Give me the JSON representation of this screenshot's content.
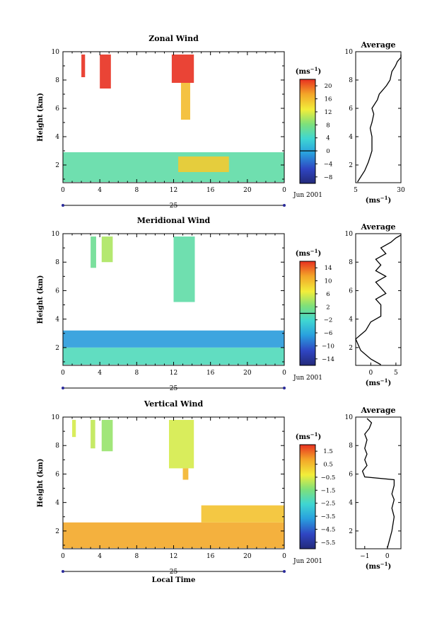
{
  "chart_data": [
    {
      "type": "heatmap",
      "title": "Zonal Wind",
      "ylabel": "Height (km)",
      "ylim": [
        0.75,
        10
      ],
      "yticks": [
        2,
        4,
        6,
        8,
        10
      ],
      "xlim": [
        0,
        24
      ],
      "xticks": [
        "0",
        "4",
        "8",
        "12",
        "16",
        "20",
        "0"
      ],
      "date_label": "25",
      "month_label": "Jun 2001",
      "colorbar": {
        "unit": "(ms",
        "exp": "−1",
        "unit_close": ")",
        "ticks": [
          "20",
          "16",
          "12",
          "8",
          "4",
          "0",
          "−4",
          "−8"
        ],
        "min": -10,
        "max": 22,
        "contour": 0
      },
      "colors": {
        "low": "#2c3aa0",
        "high": "#e83020"
      },
      "regions": [
        {
          "t0": 0,
          "t1": 24,
          "h0": 0.8,
          "h1": 2.9,
          "value": 6
        },
        {
          "t0": 12.5,
          "t1": 18,
          "h0": 1.5,
          "h1": 2.6,
          "value": 15
        },
        {
          "t0": 2,
          "t1": 2.4,
          "h0": 8.2,
          "h1": 9.8,
          "value": 22
        },
        {
          "t0": 4,
          "t1": 5.2,
          "h0": 7.4,
          "h1": 9.8,
          "value": 22
        },
        {
          "t0": 11.8,
          "t1": 14.2,
          "h0": 7.8,
          "h1": 9.8,
          "value": 22
        },
        {
          "t0": 12.8,
          "t1": 13.8,
          "h0": 5.2,
          "h1": 7.8,
          "value": 16
        }
      ],
      "profile": {
        "title": "Average",
        "xlim": [
          5,
          30
        ],
        "xticks": [
          "5",
          "30"
        ],
        "xlabel": "(ms",
        "xlabel_exp": "−1",
        "xlabel_close": ")",
        "ylim": [
          0.75,
          10
        ],
        "yticks": [
          2,
          4,
          6,
          8,
          10
        ],
        "x": [
          6,
          7,
          10,
          12,
          13,
          14,
          14,
          14,
          13,
          14,
          15,
          14,
          17,
          18,
          22,
          24,
          25,
          27,
          28,
          30,
          30
        ],
        "y": [
          0.8,
          1,
          1.6,
          2.2,
          2.6,
          3,
          3.6,
          4,
          4.6,
          5,
          5.6,
          6,
          6.6,
          7,
          7.6,
          8,
          8.6,
          9,
          9.3,
          9.6,
          9.8
        ]
      }
    },
    {
      "type": "heatmap",
      "title": "Meridional Wind",
      "ylabel": "Height (km)",
      "ylim": [
        0.75,
        10
      ],
      "yticks": [
        2,
        4,
        6,
        8,
        10
      ],
      "xlim": [
        0,
        24
      ],
      "xticks": [
        "0",
        "4",
        "8",
        "12",
        "16",
        "20",
        "0"
      ],
      "date_label": "25",
      "month_label": "Jun 2001",
      "colorbar": {
        "unit": "(ms",
        "exp": "−1",
        "unit_close": ")",
        "ticks": [
          "14",
          "10",
          "6",
          "2",
          "−2",
          "−6",
          "−10",
          "−14"
        ],
        "min": -16,
        "max": 16,
        "contour": 0
      },
      "colors": {
        "low": "#2c3aa0",
        "high": "#e83020"
      },
      "regions": [
        {
          "t0": 0,
          "t1": 24,
          "h0": 2,
          "h1": 3.2,
          "value": -7
        },
        {
          "t0": 0,
          "t1": 24,
          "h0": 0.8,
          "h1": 2,
          "value": -1
        },
        {
          "t0": 3,
          "t1": 3.6,
          "h0": 7.6,
          "h1": 9.8,
          "value": 1
        },
        {
          "t0": 4.2,
          "t1": 5.4,
          "h0": 8,
          "h1": 9.8,
          "value": 4
        },
        {
          "t0": 12,
          "t1": 14.3,
          "h0": 5.2,
          "h1": 9.8,
          "value": 0
        }
      ],
      "profile": {
        "title": "Average",
        "xlim": [
          -3,
          6
        ],
        "xticks": [
          "0",
          "5"
        ],
        "xlabel": "(ms",
        "xlabel_exp": "−1",
        "xlabel_close": ")",
        "ylim": [
          0.75,
          10
        ],
        "yticks": [
          2,
          4,
          6,
          8,
          10
        ],
        "x": [
          2,
          0,
          -2,
          -3,
          -1,
          0,
          2,
          2,
          1,
          3,
          2,
          1,
          3,
          1,
          2,
          1,
          3,
          2,
          4,
          5,
          6
        ],
        "y": [
          0.8,
          1.2,
          1.8,
          2.6,
          3.2,
          3.8,
          4.2,
          5,
          5.4,
          5.8,
          6.2,
          6.6,
          7,
          7.4,
          7.8,
          8.2,
          8.6,
          9,
          9.4,
          9.7,
          9.9
        ]
      }
    },
    {
      "type": "heatmap",
      "title": "Vertical Wind",
      "ylabel": "Height (km)",
      "ylim": [
        0.75,
        10
      ],
      "yticks": [
        2,
        4,
        6,
        8,
        10
      ],
      "xlim": [
        0,
        24
      ],
      "xticks": [
        "0",
        "4",
        "8",
        "12",
        "16",
        "20",
        "0"
      ],
      "date_label": "25",
      "month_label": "Jun 2001",
      "xlabel": "Local Time",
      "colorbar": {
        "unit": "(ms",
        "exp": "−1",
        "unit_close": ")",
        "ticks": [
          "1.5",
          "0.5",
          "−0.5",
          "−1.5",
          "−2.5",
          "−3.5",
          "−4.5",
          "−5.5"
        ],
        "min": -6,
        "max": 2,
        "contour": null
      },
      "colors": {
        "low": "#2c3aa0",
        "high": "#e83020"
      },
      "regions": [
        {
          "t0": 0,
          "t1": 24,
          "h0": 0.8,
          "h1": 2.6,
          "value": 0.8
        },
        {
          "t0": 15,
          "t1": 24,
          "h0": 2.6,
          "h1": 3.8,
          "value": 0.4
        },
        {
          "t0": 1,
          "t1": 1.4,
          "h0": 8.6,
          "h1": 9.8,
          "value": -0.6
        },
        {
          "t0": 3,
          "t1": 3.5,
          "h0": 7.8,
          "h1": 9.8,
          "value": -0.8
        },
        {
          "t0": 4.2,
          "t1": 5.4,
          "h0": 7.6,
          "h1": 9.8,
          "value": -1.2
        },
        {
          "t0": 11.5,
          "t1": 14.2,
          "h0": 6.4,
          "h1": 9.8,
          "value": -0.6
        },
        {
          "t0": 13,
          "t1": 13.6,
          "h0": 5.6,
          "h1": 6.4,
          "value": 0.6
        }
      ],
      "profile": {
        "title": "Average",
        "xlim": [
          -1.4,
          0.6
        ],
        "xticks": [
          "−1",
          "0"
        ],
        "xlabel": "(ms",
        "xlabel_exp": "−1",
        "xlabel_close": ")",
        "ylim": [
          0.75,
          10
        ],
        "yticks": [
          2,
          4,
          6,
          8,
          10
        ],
        "x": [
          0,
          0.1,
          0.2,
          0.3,
          0.2,
          0.3,
          0.2,
          0.3,
          0.3,
          -1,
          -1.1,
          -0.9,
          -1,
          -0.9,
          -1,
          -0.9,
          -1,
          -0.8,
          -0.7,
          -0.9
        ],
        "y": [
          0.8,
          1.4,
          2,
          3,
          3.6,
          4.2,
          4.6,
          5.2,
          5.6,
          5.8,
          6.2,
          6.6,
          7,
          7.4,
          7.8,
          8.4,
          8.8,
          9.2,
          9.6,
          9.9
        ]
      }
    }
  ]
}
